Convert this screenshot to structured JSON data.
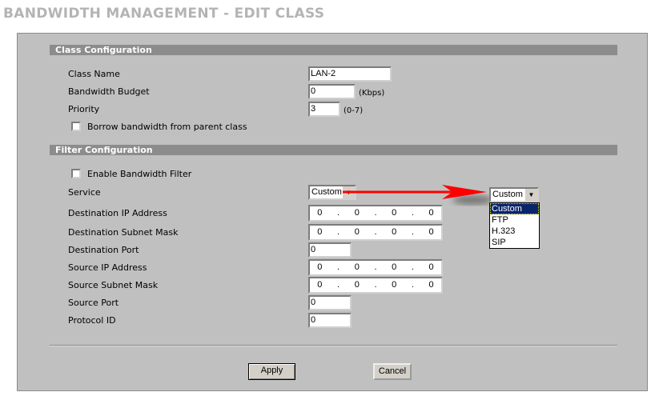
{
  "page_title": "BANDWIDTH MANAGEMENT - EDIT CLASS",
  "class_config": {
    "header": "Class Configuration",
    "class_name": {
      "label": "Class Name",
      "value": "LAN-2"
    },
    "bandwidth_budget": {
      "label": "Bandwidth Budget",
      "value": "0",
      "unit": "(Kbps)"
    },
    "priority": {
      "label": "Priority",
      "value": "3",
      "range": "(0-7)"
    },
    "borrow": {
      "label": "Borrow bandwidth from parent class",
      "checked": false
    }
  },
  "filter_config": {
    "header": "Filter Configuration",
    "enable": {
      "label": "Enable Bandwidth Filter",
      "checked": false
    },
    "service": {
      "label": "Service",
      "value": "Custom",
      "options": [
        "Custom",
        "FTP",
        "H.323",
        "SIP"
      ]
    },
    "dest_ip": {
      "label": "Destination IP Address",
      "octets": [
        "0",
        "0",
        "0",
        "0"
      ]
    },
    "dest_mask": {
      "label": "Destination Subnet Mask",
      "octets": [
        "0",
        "0",
        "0",
        "0"
      ]
    },
    "dest_port": {
      "label": "Destination Port",
      "value": "0"
    },
    "src_ip": {
      "label": "Source IP Address",
      "octets": [
        "0",
        "0",
        "0",
        "0"
      ]
    },
    "src_mask": {
      "label": "Source Subnet Mask",
      "octets": [
        "0",
        "0",
        "0",
        "0"
      ]
    },
    "src_port": {
      "label": "Source Port",
      "value": "0"
    },
    "protocol": {
      "label": "Protocol ID",
      "value": "0"
    }
  },
  "buttons": {
    "apply": "Apply",
    "cancel": "Cancel"
  },
  "colors": {
    "panel": "#c0c0c0",
    "header_bar": "#8c8c8c",
    "arrow": "#ff0000",
    "selected": "#0a246a"
  }
}
